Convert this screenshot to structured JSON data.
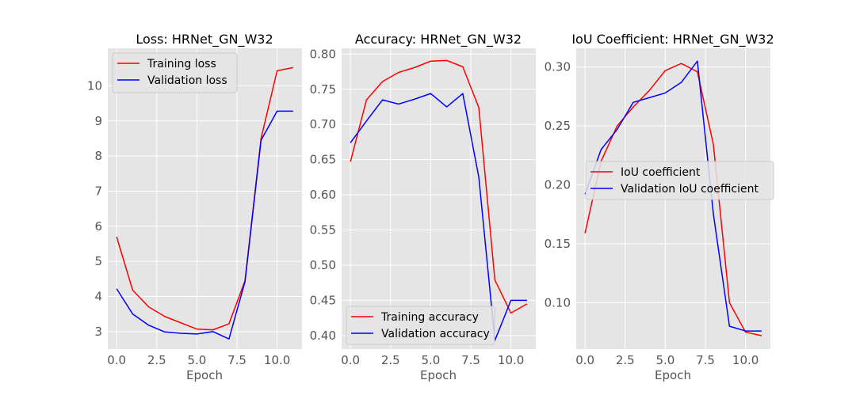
{
  "chart_data": [
    {
      "type": "line",
      "title": "Loss: HRNet_GN_W32",
      "xlabel": "Epoch",
      "ylabel": "",
      "x": [
        0,
        1,
        2,
        3,
        4,
        5,
        6,
        7,
        8,
        9,
        10,
        11
      ],
      "xlim": [
        -0.55,
        11.55
      ],
      "ylim": [
        2.5,
        11.07
      ],
      "xticks": [
        0.0,
        2.5,
        5.0,
        7.5,
        10.0
      ],
      "xtick_labels": [
        "0.0",
        "2.5",
        "5.0",
        "7.5",
        "10.0"
      ],
      "yticks": [
        3,
        4,
        5,
        6,
        7,
        8,
        9,
        10
      ],
      "ytick_labels": [
        "3",
        "4",
        "5",
        "6",
        "7",
        "8",
        "9",
        "10"
      ],
      "grid": true,
      "legend_position": "upper-left",
      "series": [
        {
          "name": "Training loss",
          "color": "#ff0000",
          "values": [
            5.7,
            4.18,
            3.7,
            3.43,
            3.25,
            3.07,
            3.05,
            3.22,
            4.45,
            8.5,
            10.43,
            10.52
          ]
        },
        {
          "name": "Validation loss",
          "color": "#0000ff",
          "values": [
            4.22,
            3.5,
            3.18,
            2.99,
            2.95,
            2.93,
            3.0,
            2.79,
            4.42,
            8.45,
            9.28,
            9.28
          ]
        }
      ]
    },
    {
      "type": "line",
      "title": "Accuracy: HRNet_GN_W32",
      "xlabel": "Epoch",
      "ylabel": "",
      "x": [
        0,
        1,
        2,
        3,
        4,
        5,
        6,
        7,
        8,
        9,
        10,
        11
      ],
      "xlim": [
        -0.55,
        11.55
      ],
      "ylim": [
        0.3807,
        0.8083
      ],
      "xticks": [
        0.0,
        2.5,
        5.0,
        7.5,
        10.0
      ],
      "xtick_labels": [
        "0.0",
        "2.5",
        "5.0",
        "7.5",
        "10.0"
      ],
      "yticks": [
        0.4,
        0.45,
        0.5,
        0.55,
        0.6,
        0.65,
        0.7,
        0.75,
        0.8
      ],
      "ytick_labels": [
        "0.40",
        "0.45",
        "0.50",
        "0.55",
        "0.60",
        "0.65",
        "0.70",
        "0.75",
        "0.80"
      ],
      "grid": true,
      "legend_position": "lower-left",
      "series": [
        {
          "name": "Training accuracy",
          "color": "#ff0000",
          "values": [
            0.647,
            0.735,
            0.761,
            0.774,
            0.781,
            0.79,
            0.791,
            0.782,
            0.724,
            0.479,
            0.432,
            0.445
          ]
        },
        {
          "name": "Validation accuracy",
          "color": "#0000ff",
          "values": [
            0.674,
            0.705,
            0.735,
            0.729,
            0.736,
            0.744,
            0.725,
            0.744,
            0.625,
            0.393,
            0.45,
            0.45
          ]
        }
      ]
    },
    {
      "type": "line",
      "title": "IoU Coefficient: HRNet_GN_W32",
      "xlabel": "Epoch",
      "ylabel": "",
      "x": [
        0,
        1,
        2,
        3,
        4,
        5,
        6,
        7,
        8,
        9,
        10,
        11
      ],
      "xlim": [
        -0.55,
        11.55
      ],
      "ylim": [
        0.0606,
        0.3159
      ],
      "xticks": [
        0.0,
        2.5,
        5.0,
        7.5,
        10.0
      ],
      "xtick_labels": [
        "0.0",
        "2.5",
        "5.0",
        "7.5",
        "10.0"
      ],
      "yticks": [
        0.1,
        0.15,
        0.2,
        0.25,
        0.3
      ],
      "ytick_labels": [
        "0.10",
        "0.15",
        "0.20",
        "0.25",
        "0.30"
      ],
      "grid": true,
      "legend_position": "center-right",
      "series": [
        {
          "name": "IoU coefficient",
          "color": "#ff0000",
          "values": [
            0.159,
            0.22,
            0.25,
            0.266,
            0.28,
            0.297,
            0.303,
            0.296,
            0.234,
            0.1,
            0.075,
            0.072
          ]
        },
        {
          "name": "Validation IoU coefficient",
          "color": "#0000ff",
          "values": [
            0.192,
            0.23,
            0.247,
            0.27,
            0.274,
            0.278,
            0.287,
            0.305,
            0.175,
            0.08,
            0.076,
            0.076
          ]
        }
      ]
    }
  ]
}
